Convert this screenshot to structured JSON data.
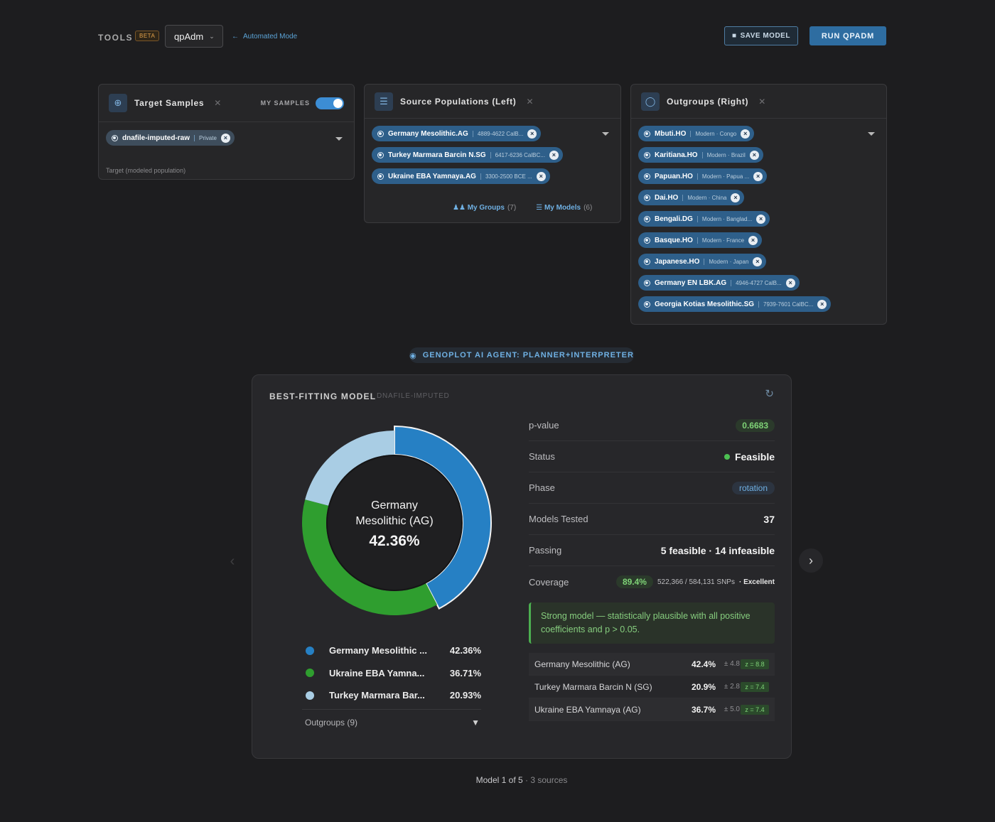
{
  "toolbar": {
    "tools_label": "TOOLS",
    "beta_badge": "BETA",
    "tool_selected": "qpAdm",
    "automated_mode": "Automated Mode",
    "save_label": "SAVE MODEL",
    "run_label": "RUN QPADM"
  },
  "target_panel": {
    "title": "Target Samples",
    "toggle_label": "MY SAMPLES",
    "toggle_on": true,
    "chip": {
      "name": "dnafile-imputed-raw",
      "meta": "Private"
    },
    "note": "Target (modeled population)"
  },
  "source_panel": {
    "title": "Source Populations (Left)",
    "chips": [
      {
        "name": "Germany Mesolithic.AG",
        "meta": "4889-4622 CalB..."
      },
      {
        "name": "Turkey Marmara Barcin N.SG",
        "meta": "6417-6236 CalBC..."
      },
      {
        "name": "Ukraine EBA Yamnaya.AG",
        "meta": "3300-2500 BCE ..."
      }
    ],
    "links": [
      {
        "label": "My Groups",
        "count": "(7)"
      },
      {
        "label": "My Models",
        "count": "(6)"
      }
    ]
  },
  "outgroup_panel": {
    "title": "Outgroups (Right)",
    "chips": [
      {
        "name": "Mbuti.HO",
        "meta": "Modern · Congo"
      },
      {
        "name": "Karitiana.HO",
        "meta": "Modern · Brazil"
      },
      {
        "name": "Papuan.HO",
        "meta": "Modern · Papua ..."
      },
      {
        "name": "Dai.HO",
        "meta": "Modern · China"
      },
      {
        "name": "Bengali.DG",
        "meta": "Modern · Banglad..."
      },
      {
        "name": "Basque.HO",
        "meta": "Modern · France"
      },
      {
        "name": "Japanese.HO",
        "meta": "Modern · Japan"
      },
      {
        "name": "Germany EN LBK.AG",
        "meta": "4946-4727 CalB..."
      },
      {
        "name": "Georgia Kotias Mesolithic.SG",
        "meta": "7939-7601 CalBC..."
      }
    ]
  },
  "agent_label": "GENOPLOT AI AGENT: PLANNER+INTERPRETER",
  "model_card": {
    "title": "BEST-FITTING MODEL",
    "subtitle": "DNAFILE-IMPUTED",
    "center_name_1": "Germany",
    "center_name_2": "Mesolithic (AG)",
    "center_pct": "42.36%",
    "legend": [
      {
        "name": "Germany Mesolithic ...",
        "value": "42.36%",
        "color": "#2680c4"
      },
      {
        "name": "Ukraine EBA Yamna...",
        "value": "36.71%",
        "color": "#2f9e2f"
      },
      {
        "name": "Turkey Marmara Bar...",
        "value": "20.93%",
        "color": "#a9cde4"
      }
    ],
    "outgroups_label": "Outgroups (9)",
    "stats": {
      "pvalue_label": "p-value",
      "pvalue": "0.6683",
      "status_label": "Status",
      "status": "Feasible",
      "phase_label": "Phase",
      "phase": "rotation",
      "tested_label": "Models Tested",
      "tested": "37",
      "passing_label": "Passing",
      "passing": "5 feasible · 14 infeasible",
      "coverage_label": "Coverage",
      "coverage_pct": "89.4%",
      "coverage_snps": "522,366 / 584,131 SNPs",
      "coverage_quality": "· Excellent"
    },
    "callout": "Strong model — statistically plausible with all positive coefficients and p > 0.05.",
    "coefficients": [
      {
        "name": "Germany Mesolithic (AG)",
        "pct": "42.4%",
        "se": "± 4.8",
        "z": "z = 8.8"
      },
      {
        "name": "Turkey Marmara Barcin N (SG)",
        "pct": "20.9%",
        "se": "± 2.8",
        "z": "z = 7.4"
      },
      {
        "name": "Ukraine EBA Yamnaya (AG)",
        "pct": "36.7%",
        "se": "± 5.0",
        "z": "z = 7.4"
      }
    ]
  },
  "donut_values": [
    42.36,
    36.71,
    20.93
  ],
  "footer": {
    "position": "Model 1 of 5",
    "sources": "· 3 sources"
  }
}
